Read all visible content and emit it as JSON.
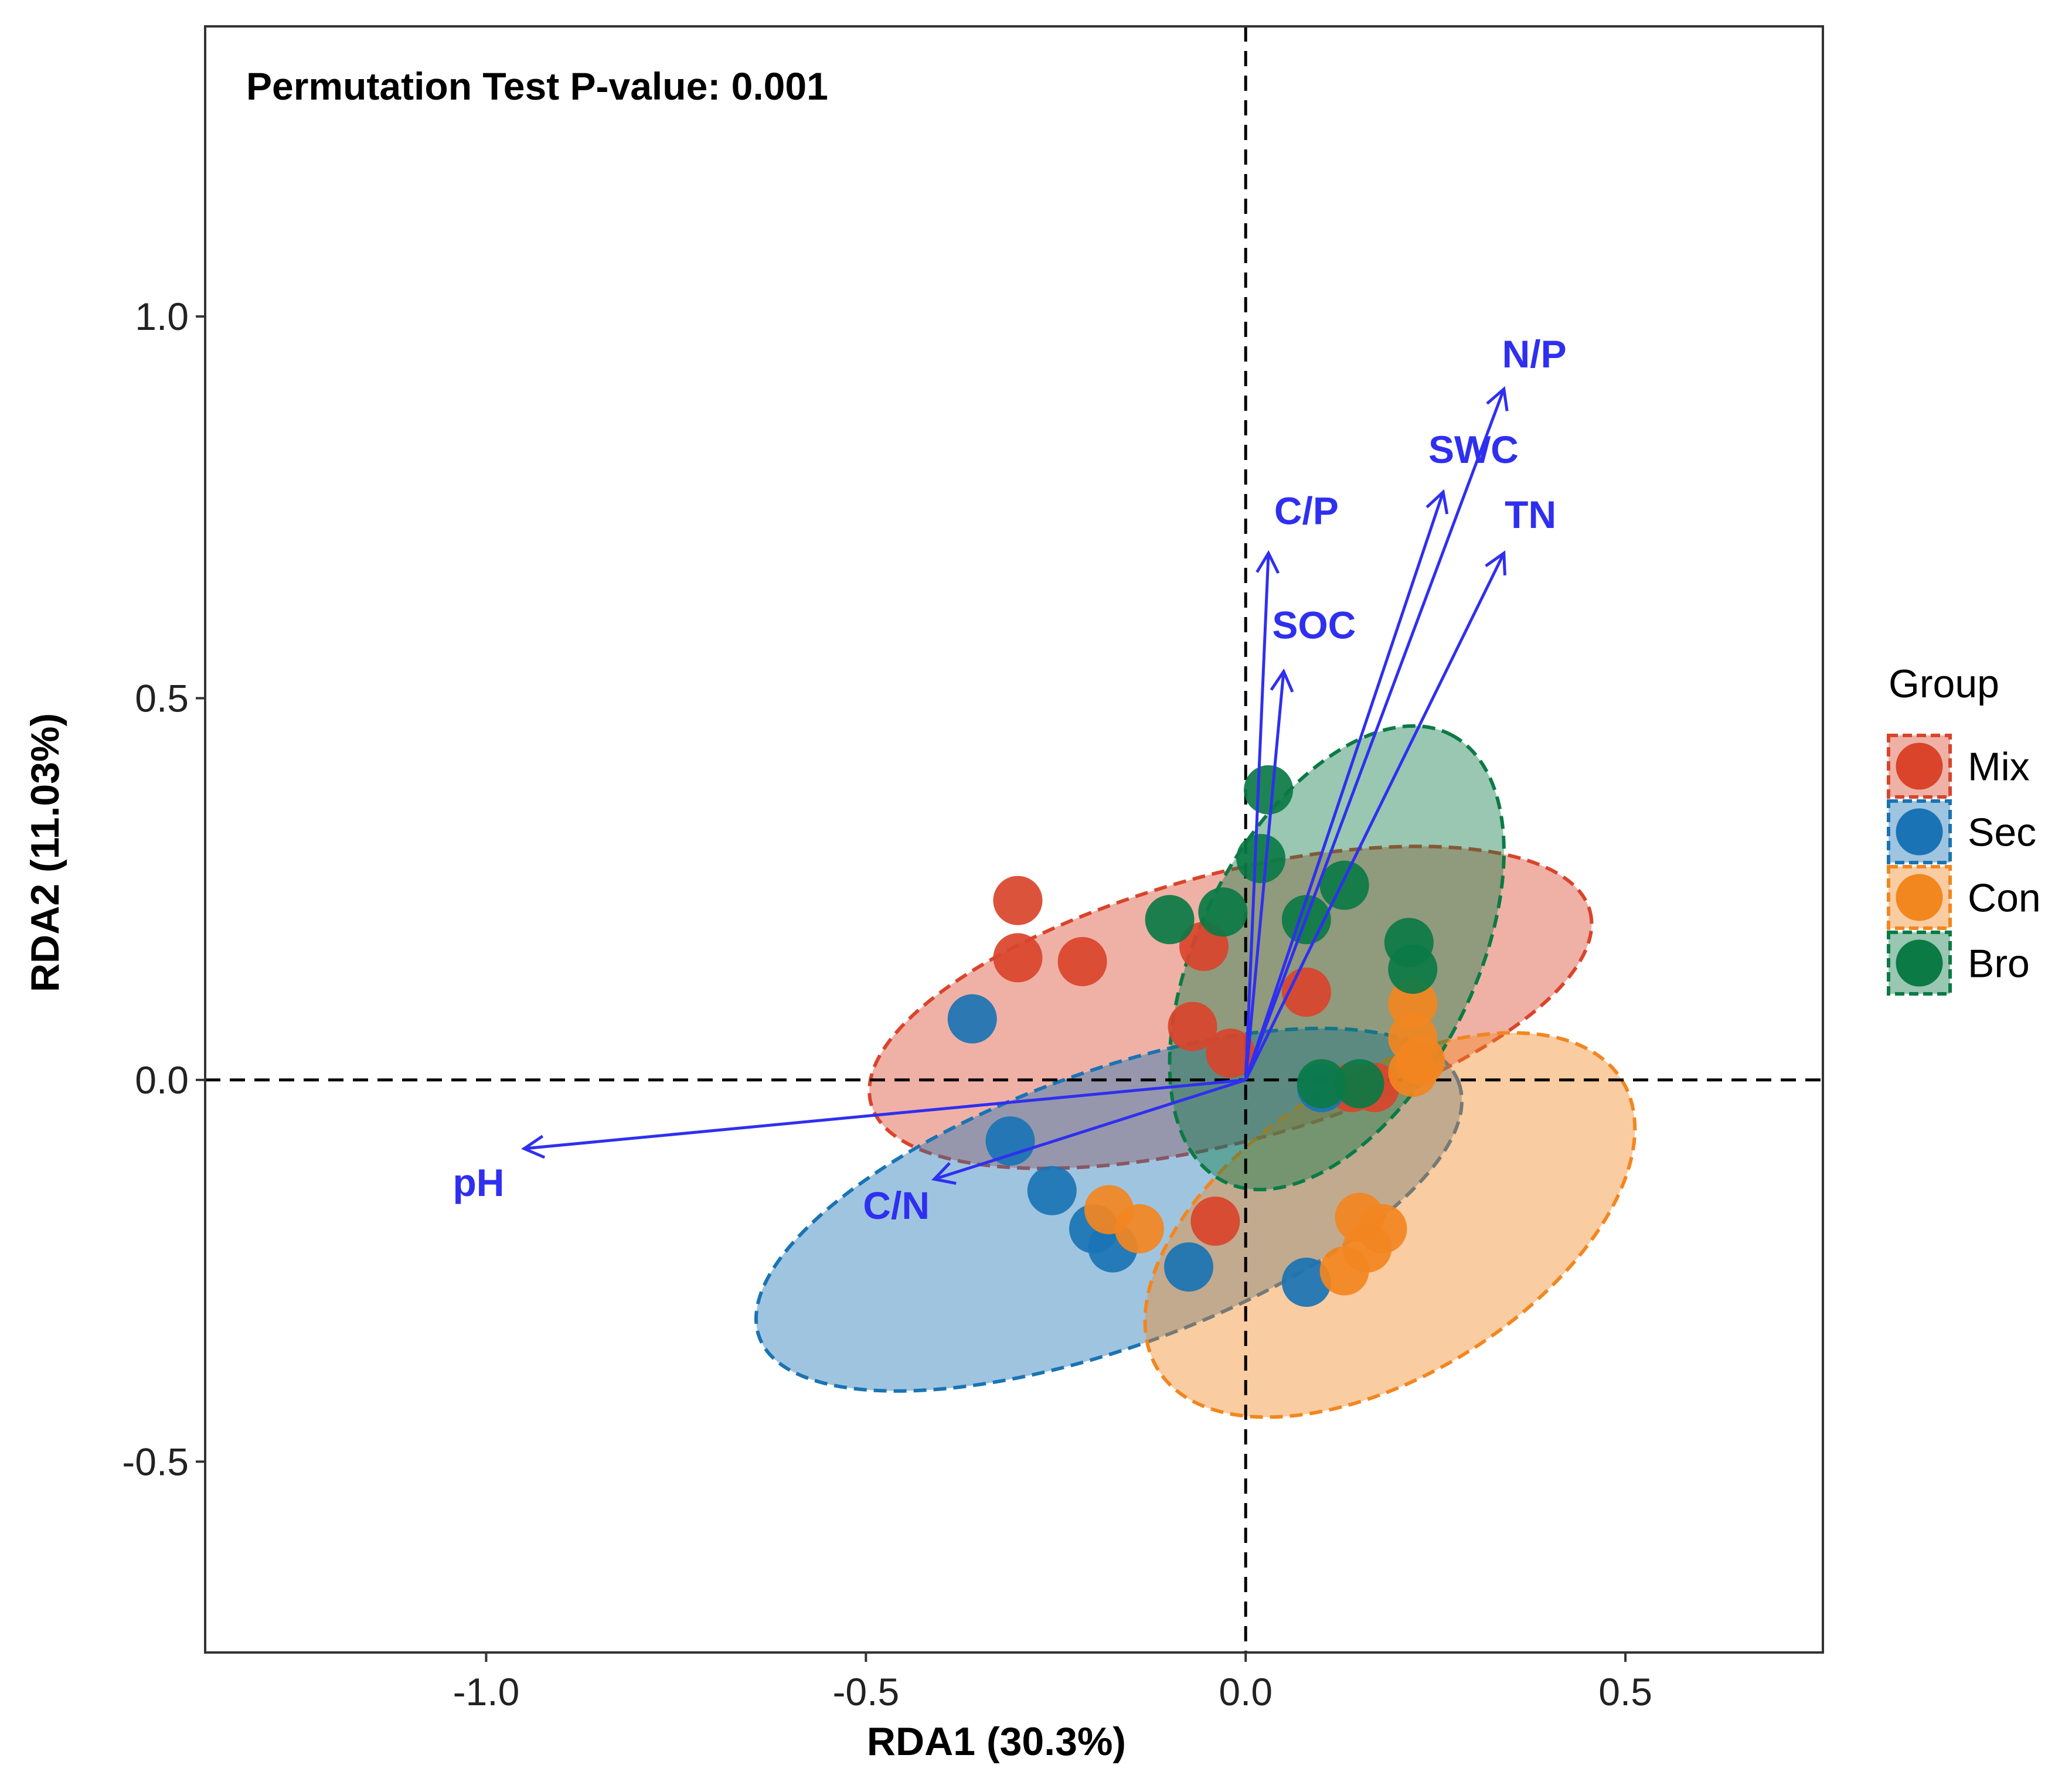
{
  "chart_data": {
    "type": "scatter",
    "subtype": "RDA biplot with confidence ellipses",
    "title": "Permutation Test P-value: 0.001",
    "xlabel": "RDA1 (30.3%)",
    "ylabel": "RDA2 (11.03%)",
    "xlim": [
      -1.37,
      0.76
    ],
    "ylim": [
      -0.75,
      1.38
    ],
    "x_ticks": [
      -1.0,
      -0.5,
      0.0,
      0.5
    ],
    "x_tick_labels": [
      "-1.0",
      "-0.5",
      "0.0",
      "0.5"
    ],
    "y_ticks": [
      -0.5,
      0.0,
      0.5,
      1.0
    ],
    "y_tick_labels": [
      "-0.5",
      "0.0",
      "0.5",
      "1.0"
    ],
    "grid": false,
    "reference_lines": {
      "x": 0,
      "y": 0,
      "style": "dashed"
    },
    "legend": {
      "title": "Group",
      "placement": "right",
      "entries": [
        "Mix",
        "Sec",
        "Con",
        "Bro"
      ]
    },
    "arrow_color": "#2f2ff0",
    "series": [
      {
        "name": "Mix",
        "color": "#d9442b",
        "points": [
          [
            -0.3,
            0.235
          ],
          [
            -0.3,
            0.16
          ],
          [
            -0.215,
            0.155
          ],
          [
            -0.055,
            0.175
          ],
          [
            -0.07,
            0.07
          ],
          [
            0.08,
            0.115
          ],
          [
            -0.02,
            0.035
          ],
          [
            0.17,
            -0.01
          ],
          [
            -0.04,
            -0.185
          ],
          [
            0.14,
            -0.01
          ]
        ],
        "ellipse": {
          "center": [
            -0.02,
            0.095
          ],
          "rx": 0.49,
          "ry": 0.175,
          "angle_deg": -15
        }
      },
      {
        "name": "Sec",
        "color": "#1a73b4",
        "points": [
          [
            -0.36,
            0.08
          ],
          [
            -0.31,
            -0.08
          ],
          [
            -0.255,
            -0.145
          ],
          [
            -0.2,
            -0.195
          ],
          [
            -0.175,
            -0.22
          ],
          [
            -0.075,
            -0.245
          ],
          [
            0.08,
            -0.265
          ],
          [
            0.1,
            -0.01
          ]
        ],
        "ellipse": {
          "center": [
            -0.18,
            -0.17
          ],
          "rx": 0.49,
          "ry": 0.18,
          "angle_deg": -20
        }
      },
      {
        "name": "Con",
        "color": "#f2861f",
        "points": [
          [
            -0.18,
            -0.17
          ],
          [
            -0.14,
            -0.195
          ],
          [
            0.15,
            -0.18
          ],
          [
            0.18,
            -0.195
          ],
          [
            0.16,
            -0.22
          ],
          [
            0.13,
            -0.25
          ],
          [
            0.22,
            0.1
          ],
          [
            0.22,
            0.055
          ],
          [
            0.23,
            0.025
          ],
          [
            0.22,
            0.01
          ]
        ],
        "ellipse": {
          "center": [
            0.19,
            -0.19
          ],
          "rx": 0.36,
          "ry": 0.195,
          "angle_deg": -32
        }
      },
      {
        "name": "Bro",
        "color": "#0b7a45",
        "points": [
          [
            0.03,
            0.38
          ],
          [
            0.02,
            0.29
          ],
          [
            -0.1,
            0.21
          ],
          [
            -0.03,
            0.22
          ],
          [
            0.08,
            0.21
          ],
          [
            0.13,
            0.255
          ],
          [
            0.215,
            0.18
          ],
          [
            0.22,
            0.145
          ],
          [
            0.1,
            -0.005
          ],
          [
            0.15,
            -0.005
          ]
        ],
        "ellipse": {
          "center": [
            0.12,
            0.16
          ],
          "rx": 0.33,
          "ry": 0.18,
          "angle_deg": -63
        }
      }
    ],
    "vectors": [
      {
        "name": "pH",
        "x": -0.95,
        "y": -0.09,
        "label_pos": [
          -1.01,
          -0.135
        ]
      },
      {
        "name": "C/N",
        "x": -0.41,
        "y": -0.13,
        "label_pos": [
          -0.46,
          -0.165
        ]
      },
      {
        "name": "C/P",
        "x": 0.03,
        "y": 0.69,
        "label_pos": [
          0.08,
          0.745
        ]
      },
      {
        "name": "SOC",
        "x": 0.05,
        "y": 0.535,
        "label_pos": [
          0.09,
          0.595
        ]
      },
      {
        "name": "SWC",
        "x": 0.26,
        "y": 0.77,
        "label_pos": [
          0.3,
          0.825
        ]
      },
      {
        "name": "TN",
        "x": 0.34,
        "y": 0.69,
        "label_pos": [
          0.375,
          0.74
        ]
      },
      {
        "name": "N/P",
        "x": 0.34,
        "y": 0.905,
        "label_pos": [
          0.38,
          0.95
        ]
      }
    ]
  }
}
